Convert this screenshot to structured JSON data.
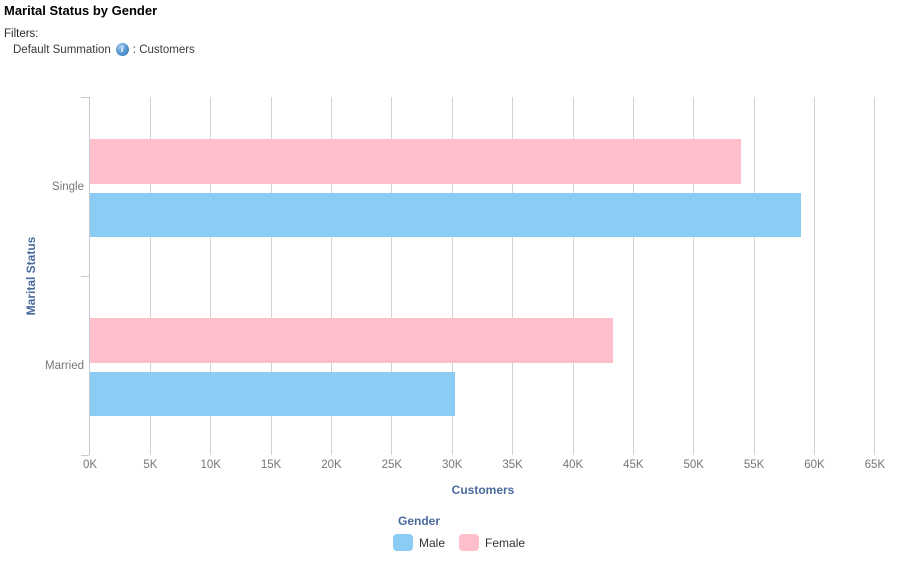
{
  "header": {
    "title": "Marital Status by Gender",
    "filters_label": "Filters:",
    "filter_name": "Default Summation",
    "colon": ":",
    "filter_value": "Customers"
  },
  "chart_data": {
    "type": "bar",
    "orientation": "horizontal",
    "title": "Marital Status by Gender",
    "xlabel": "Customers",
    "ylabel": "Marital Status",
    "categories": [
      "Single",
      "Married"
    ],
    "series": [
      {
        "name": "Male",
        "color": "#8BCCF5",
        "values": [
          58900,
          30200
        ]
      },
      {
        "name": "Female",
        "color": "#FFBFCA",
        "values": [
          53900,
          43300
        ]
      }
    ],
    "bar_order_top_to_bottom": [
      "Female",
      "Male"
    ],
    "x_tick_labels": [
      "0K",
      "5K",
      "10K",
      "15K",
      "20K",
      "25K",
      "30K",
      "35K",
      "40K",
      "45K",
      "50K",
      "55K",
      "60K",
      "65K"
    ],
    "x_tick_values": [
      0,
      5000,
      10000,
      15000,
      20000,
      25000,
      30000,
      35000,
      40000,
      45000,
      50000,
      55000,
      60000,
      65000
    ],
    "xlim": [
      0,
      66500
    ],
    "grid": true,
    "legend_title": "Gender",
    "legend_position": "bottom"
  },
  "colors": {
    "male_bar": "#8BCCF5",
    "female_bar": "#FFBFCA",
    "axis_title": "#4A6A9D",
    "tick_label": "#767676",
    "gridline": "#D2D2D2",
    "axis_line": "#C5CAD2"
  }
}
